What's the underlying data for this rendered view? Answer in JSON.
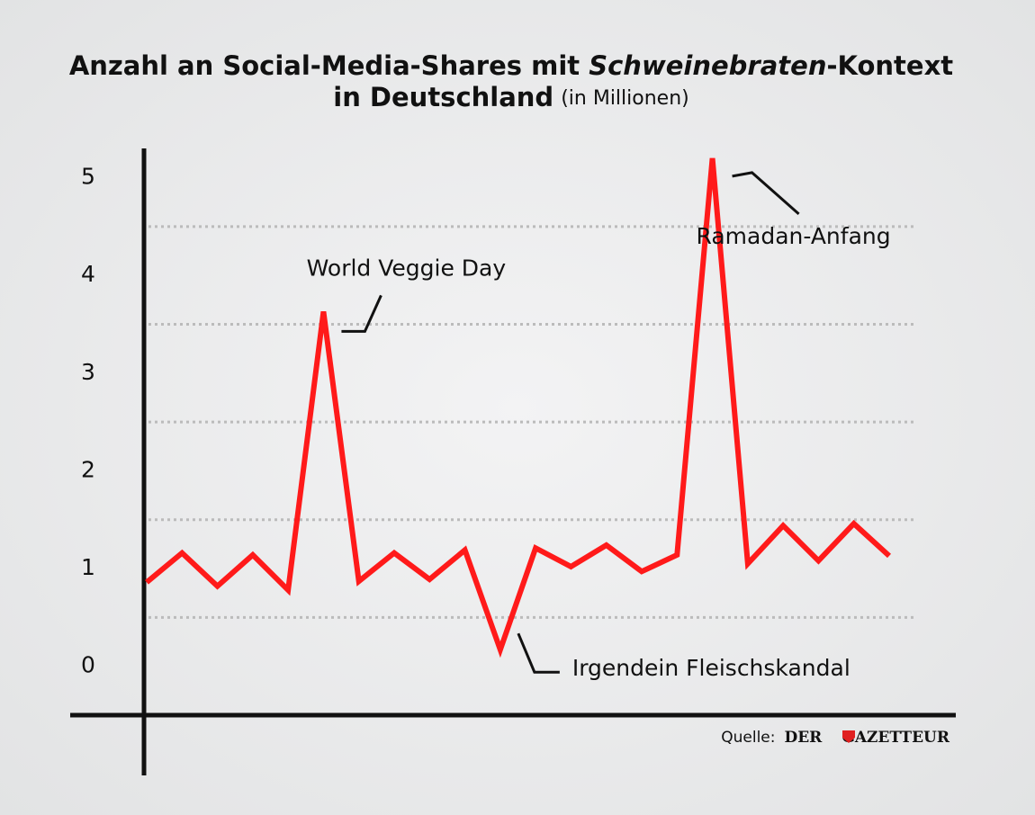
{
  "chart_data": {
    "type": "line",
    "title": {
      "part1": "Anzahl an Social-Media-Shares mit ",
      "italic": "Schweinebraten",
      "part2": "-Kontext",
      "line2": "in Deutschland",
      "unit": "(in Millionen)"
    },
    "series": [
      {
        "color": "#ff1a1a",
        "values": [
          0.86,
          1.16,
          0.82,
          1.14,
          0.78,
          3.63,
          0.87,
          1.16,
          0.89,
          1.19,
          0.17,
          1.21,
          1.02,
          1.24,
          0.97,
          1.14,
          5.2,
          1.05,
          1.44,
          1.08,
          1.46,
          1.13
        ]
      }
    ],
    "ylim": [
      -0.5,
      5.3
    ],
    "yticks": [
      0,
      1,
      2,
      3,
      4,
      5
    ],
    "ygrid": [
      0.5,
      1.5,
      2.5,
      3.5,
      4.5
    ],
    "annotations": [
      "World Veggie Day",
      "Irgendein Fleischskandal",
      "Ramadan-Anfang"
    ],
    "source": {
      "label": "Quelle:",
      "brand1": "DER",
      "brand2": "GAZETTEUR"
    }
  }
}
